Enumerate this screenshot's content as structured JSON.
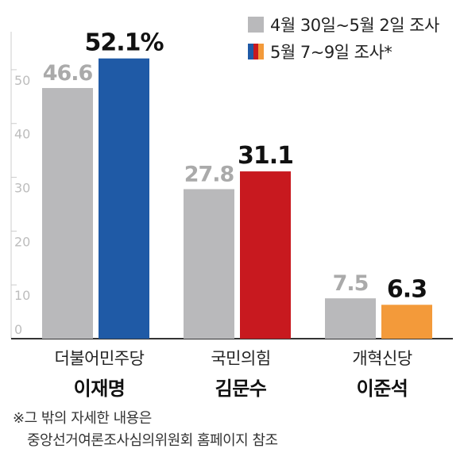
{
  "chart_data": {
    "type": "bar",
    "ylim": [
      0,
      55
    ],
    "yticks": [
      0,
      10,
      20,
      30,
      40,
      50
    ],
    "categories": [
      "더불어민주당",
      "국민의힘",
      "개혁신당"
    ],
    "candidates": [
      "이재명",
      "김문수",
      "이준석"
    ],
    "series": [
      {
        "name": "4월 30일~5월 2일 조사",
        "values": [
          46.6,
          27.8,
          7.5
        ],
        "labels": [
          "46.6",
          "27.8",
          "7.5"
        ],
        "color": "#b9b9bb",
        "label_color": "#aaaaaa"
      },
      {
        "name": "5월 7~9일 조사*",
        "values": [
          52.1,
          31.1,
          6.3
        ],
        "labels": [
          "52.1%",
          "31.1",
          "6.3"
        ],
        "colors": [
          "#1f5aa6",
          "#c8191f",
          "#f39a3a"
        ],
        "label_color": "#111111"
      }
    ],
    "grid": false
  },
  "legend": {
    "items": [
      {
        "label": "4월 30일~5월 2일 조사",
        "colors": [
          "#b9b9bb"
        ]
      },
      {
        "label": "5월 7~9일 조사*",
        "colors": [
          "#1f5aa6",
          "#c8191f",
          "#f39a3a"
        ]
      }
    ]
  },
  "footnote": {
    "line1": "※그 밖의 자세한 내용은",
    "line2": "중앙선거여론조사심의위원회 홈페이지 참조"
  }
}
